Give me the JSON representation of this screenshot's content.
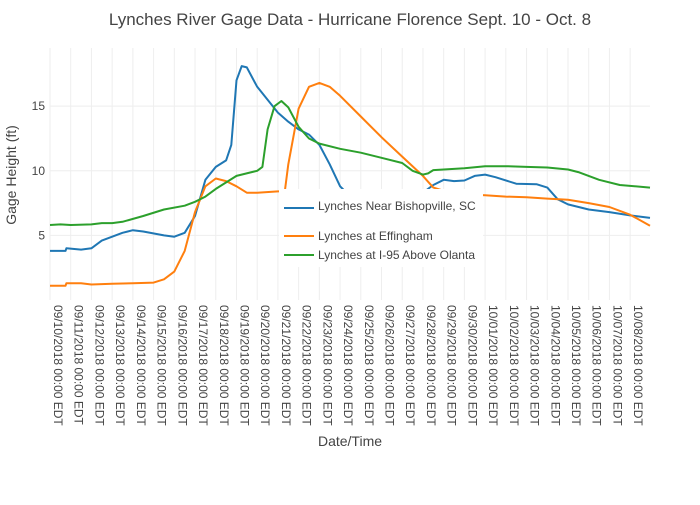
{
  "chart_data": {
    "type": "line",
    "title": "Lynches River Gage Data - Hurricane Florence Sept. 10 - Oct. 8",
    "xlabel": "Date/Time",
    "ylabel": "Gage Height (ft)",
    "x_range": [
      "2018-09-10 00:00",
      "2018-10-08 23:00"
    ],
    "ylim": [
      0,
      19.5
    ],
    "y_ticks": [
      5,
      10,
      15
    ],
    "grid": true,
    "legend_position": "inside-center",
    "x_tick_labels": [
      "09/10/2018  00:00 EDT",
      "09/11/2018 00:00 EDT",
      "09/12/2018 00:00 EDT",
      "09/13/2018 00:00 EDT",
      "09/14/2018 00:00 EDT",
      "09/15/2018 00:00 EDT",
      "09/16/2018 00:00 EDT",
      "09/17/2018 00:00 EDT",
      "09/18/2018 00:00 EDT",
      "09/19/2018 00:00 EDT",
      "09/20/2018 00:00 EDT",
      "09/21/2018 00:00 EDT",
      "09/22/2018 00:00 EDT",
      "09/23/2018 00:00 EDT",
      "09/24/2018 00:00 EDT",
      "09/25/2018 00:00 EDT",
      "09/26/2018 00:00 EDT",
      "09/27/2018 00:00 EDT",
      "09/28/2018 00:00 EDT",
      "09/29/2018 00:00 EDT",
      "09/30/2018 00:00 EDT",
      "10/01/2018 00:00 EDT",
      "10/02/2018 00:00 EDT",
      "10/03/2018 00:00 EDT",
      "10/04/2018 00:00 EDT",
      "10/05/2018 00:00 EDT",
      "10/06/2018 00:00 EDT",
      "10/07/2018 00:00 EDT",
      "10/08/2018 00:00 EDT"
    ],
    "series": [
      {
        "name": "Lynches Near Bishopville, SC",
        "color": "#1f77b4",
        "points": [
          [
            "2018-09-10 00:00",
            3.8
          ],
          [
            "2018-09-10 18:00",
            3.8
          ],
          [
            "2018-09-10 19:00",
            4.0
          ],
          [
            "2018-09-11 12:00",
            3.9
          ],
          [
            "2018-09-12 00:00",
            4.0
          ],
          [
            "2018-09-12 12:00",
            4.6
          ],
          [
            "2018-09-13 12:00",
            5.2
          ],
          [
            "2018-09-14 00:00",
            5.4
          ],
          [
            "2018-09-14 12:00",
            5.3
          ],
          [
            "2018-09-15 12:00",
            5.0
          ],
          [
            "2018-09-16 00:00",
            4.9
          ],
          [
            "2018-09-16 12:00",
            5.2
          ],
          [
            "2018-09-17 00:00",
            6.5
          ],
          [
            "2018-09-17 12:00",
            9.3
          ],
          [
            "2018-09-18 00:00",
            10.3
          ],
          [
            "2018-09-18 12:00",
            10.8
          ],
          [
            "2018-09-18 18:00",
            12.0
          ],
          [
            "2018-09-19 00:00",
            17.0
          ],
          [
            "2018-09-19 06:00",
            18.1
          ],
          [
            "2018-09-19 12:00",
            18.0
          ],
          [
            "2018-09-20 00:00",
            16.5
          ],
          [
            "2018-09-20 12:00",
            15.5
          ],
          [
            "2018-09-21 00:00",
            14.5
          ],
          [
            "2018-09-21 12:00",
            13.8
          ],
          [
            "2018-09-22 00:00",
            13.2
          ],
          [
            "2018-09-22 12:00",
            12.8
          ],
          [
            "2018-09-23 00:00",
            12.0
          ],
          [
            "2018-09-23 12:00",
            10.5
          ],
          [
            "2018-09-24 00:00",
            8.8
          ],
          [
            "2018-09-24 12:00",
            8.0
          ],
          [
            "2018-09-25 12:00",
            7.8
          ],
          [
            "2018-09-27 00:00",
            8.0
          ],
          [
            "2018-09-28 00:00",
            8.3
          ],
          [
            "2018-09-28 12:00",
            8.9
          ],
          [
            "2018-09-29 00:00",
            9.3
          ],
          [
            "2018-09-29 12:00",
            9.2
          ],
          [
            "2018-09-30 00:00",
            9.25
          ],
          [
            "2018-09-30 12:00",
            9.6
          ],
          [
            "2018-10-01 00:00",
            9.7
          ],
          [
            "2018-10-01 12:00",
            9.5
          ],
          [
            "2018-10-02 12:00",
            9.0
          ],
          [
            "2018-10-03 12:00",
            8.95
          ],
          [
            "2018-10-04 00:00",
            8.7
          ],
          [
            "2018-10-04 12:00",
            7.8
          ],
          [
            "2018-10-05 00:00",
            7.4
          ],
          [
            "2018-10-06 00:00",
            7.0
          ],
          [
            "2018-10-07 00:00",
            6.8
          ],
          [
            "2018-10-08 00:00",
            6.55
          ],
          [
            "2018-10-08 23:00",
            6.35
          ]
        ]
      },
      {
        "name": "Lynches at Effingham",
        "color": "#ff7f0e",
        "points": [
          [
            "2018-09-10 00:00",
            1.1
          ],
          [
            "2018-09-10 18:00",
            1.1
          ],
          [
            "2018-09-10 19:00",
            1.3
          ],
          [
            "2018-09-11 12:00",
            1.3
          ],
          [
            "2018-09-12 00:00",
            1.2
          ],
          [
            "2018-09-13 00:00",
            1.25
          ],
          [
            "2018-09-14 00:00",
            1.3
          ],
          [
            "2018-09-15 00:00",
            1.35
          ],
          [
            "2018-09-15 12:00",
            1.6
          ],
          [
            "2018-09-16 00:00",
            2.2
          ],
          [
            "2018-09-16 12:00",
            3.8
          ],
          [
            "2018-09-17 00:00",
            6.8
          ],
          [
            "2018-09-17 12:00",
            8.8
          ],
          [
            "2018-09-18 00:00",
            9.4
          ],
          [
            "2018-09-18 12:00",
            9.2
          ],
          [
            "2018-09-19 00:00",
            8.8
          ],
          [
            "2018-09-19 12:00",
            8.3
          ],
          [
            "2018-09-20 00:00",
            8.3
          ],
          [
            "2018-09-21 00:00",
            8.4
          ],
          [
            "2018-09-21 08:00",
            8.4
          ],
          [
            "2018-09-21 12:00",
            10.5
          ],
          [
            "2018-09-22 00:00",
            14.8
          ],
          [
            "2018-09-22 12:00",
            16.5
          ],
          [
            "2018-09-23 00:00",
            16.8
          ],
          [
            "2018-09-23 12:00",
            16.5
          ],
          [
            "2018-09-24 00:00",
            15.8
          ],
          [
            "2018-09-25 00:00",
            14.2
          ],
          [
            "2018-09-26 00:00",
            12.6
          ],
          [
            "2018-09-27 00:00",
            11.1
          ],
          [
            "2018-09-28 00:00",
            9.6
          ],
          [
            "2018-09-28 12:00",
            8.7
          ],
          [
            "2018-09-29 12:00",
            8.2
          ],
          [
            "2018-10-01 00:00",
            8.1
          ],
          [
            "2018-10-02 00:00",
            8.0
          ],
          [
            "2018-10-03 00:00",
            7.95
          ],
          [
            "2018-10-04 00:00",
            7.85
          ],
          [
            "2018-10-05 00:00",
            7.75
          ],
          [
            "2018-10-06 00:00",
            7.5
          ],
          [
            "2018-10-07 00:00",
            7.2
          ],
          [
            "2018-10-08 00:00",
            6.6
          ],
          [
            "2018-10-08 23:00",
            5.75
          ]
        ]
      },
      {
        "name": "Lynches at I-95 Above Olanta",
        "color": "#2ca02c",
        "points": [
          [
            "2018-09-10 00:00",
            5.8
          ],
          [
            "2018-09-10 12:00",
            5.85
          ],
          [
            "2018-09-11 00:00",
            5.8
          ],
          [
            "2018-09-12 00:00",
            5.85
          ],
          [
            "2018-09-12 12:00",
            5.95
          ],
          [
            "2018-09-13 00:00",
            5.95
          ],
          [
            "2018-09-13 12:00",
            6.05
          ],
          [
            "2018-09-14 12:00",
            6.5
          ],
          [
            "2018-09-15 12:00",
            7.0
          ],
          [
            "2018-09-16 12:00",
            7.3
          ],
          [
            "2018-09-17 00:00",
            7.6
          ],
          [
            "2018-09-17 12:00",
            8.0
          ],
          [
            "2018-09-18 00:00",
            8.6
          ],
          [
            "2018-09-19 00:00",
            9.6
          ],
          [
            "2018-09-20 00:00",
            10.0
          ],
          [
            "2018-09-20 06:00",
            10.3
          ],
          [
            "2018-09-20 12:00",
            13.2
          ],
          [
            "2018-09-20 20:00",
            15.0
          ],
          [
            "2018-09-21 04:00",
            15.4
          ],
          [
            "2018-09-21 12:00",
            14.9
          ],
          [
            "2018-09-22 00:00",
            13.4
          ],
          [
            "2018-09-22 12:00",
            12.5
          ],
          [
            "2018-09-23 00:00",
            12.1
          ],
          [
            "2018-09-24 00:00",
            11.7
          ],
          [
            "2018-09-25 00:00",
            11.4
          ],
          [
            "2018-09-26 00:00",
            11.0
          ],
          [
            "2018-09-27 00:00",
            10.6
          ],
          [
            "2018-09-27 12:00",
            10.0
          ],
          [
            "2018-09-28 00:00",
            9.7
          ],
          [
            "2018-09-28 06:00",
            9.8
          ],
          [
            "2018-09-28 12:00",
            10.05
          ],
          [
            "2018-09-29 00:00",
            10.1
          ],
          [
            "2018-09-30 00:00",
            10.2
          ],
          [
            "2018-10-01 00:00",
            10.35
          ],
          [
            "2018-10-02 00:00",
            10.35
          ],
          [
            "2018-10-03 00:00",
            10.3
          ],
          [
            "2018-10-04 00:00",
            10.25
          ],
          [
            "2018-10-05 00:00",
            10.1
          ],
          [
            "2018-10-05 12:00",
            9.9
          ],
          [
            "2018-10-06 12:00",
            9.3
          ],
          [
            "2018-10-07 12:00",
            8.9
          ],
          [
            "2018-10-08 23:00",
            8.7
          ]
        ]
      }
    ]
  }
}
